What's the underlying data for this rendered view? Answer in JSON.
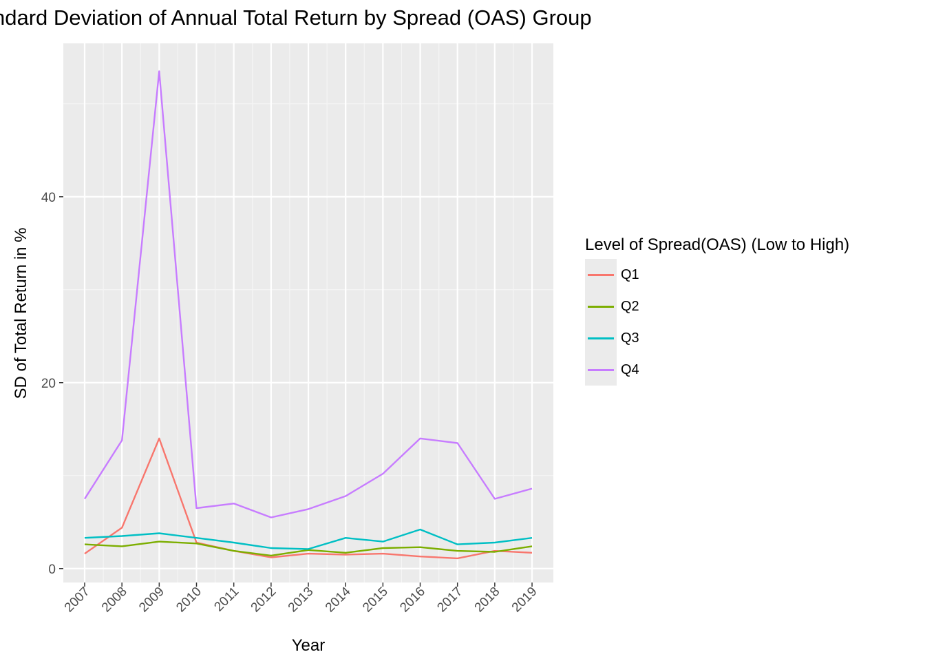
{
  "chart_data": {
    "type": "line",
    "title": "ndard Deviation of Annual Total Return by Spread (OAS) Group",
    "xlabel": "Year",
    "ylabel": "SD of Total Return in %",
    "x": [
      "2007",
      "2008",
      "2009",
      "2010",
      "2011",
      "2012",
      "2013",
      "2014",
      "2015",
      "2016",
      "2017",
      "2018",
      "2019"
    ],
    "ylim": [
      -1.5,
      56.5
    ],
    "yticks": [
      0,
      20,
      40
    ],
    "grid": true,
    "legend": {
      "title": "Level of Spread(OAS) (Low to High)",
      "position": "right"
    },
    "series": [
      {
        "name": "Q1",
        "color": "#F8766D",
        "values": [
          1.6,
          4.4,
          14.0,
          2.8,
          1.9,
          1.2,
          1.6,
          1.5,
          1.6,
          1.3,
          1.1,
          1.9,
          1.7
        ]
      },
      {
        "name": "Q2",
        "color": "#7CAE00",
        "values": [
          2.6,
          2.4,
          2.9,
          2.7,
          1.9,
          1.4,
          2.0,
          1.7,
          2.2,
          2.3,
          1.9,
          1.8,
          2.4
        ]
      },
      {
        "name": "Q3",
        "color": "#00BFC4",
        "values": [
          3.3,
          3.5,
          3.8,
          3.3,
          2.8,
          2.2,
          2.1,
          3.3,
          2.9,
          4.2,
          2.6,
          2.8,
          3.3
        ]
      },
      {
        "name": "Q4",
        "color": "#C77CFF",
        "values": [
          7.5,
          13.8,
          53.5,
          6.5,
          7.0,
          5.5,
          6.4,
          7.8,
          10.2,
          14.0,
          13.5,
          7.5,
          8.6
        ]
      }
    ]
  }
}
